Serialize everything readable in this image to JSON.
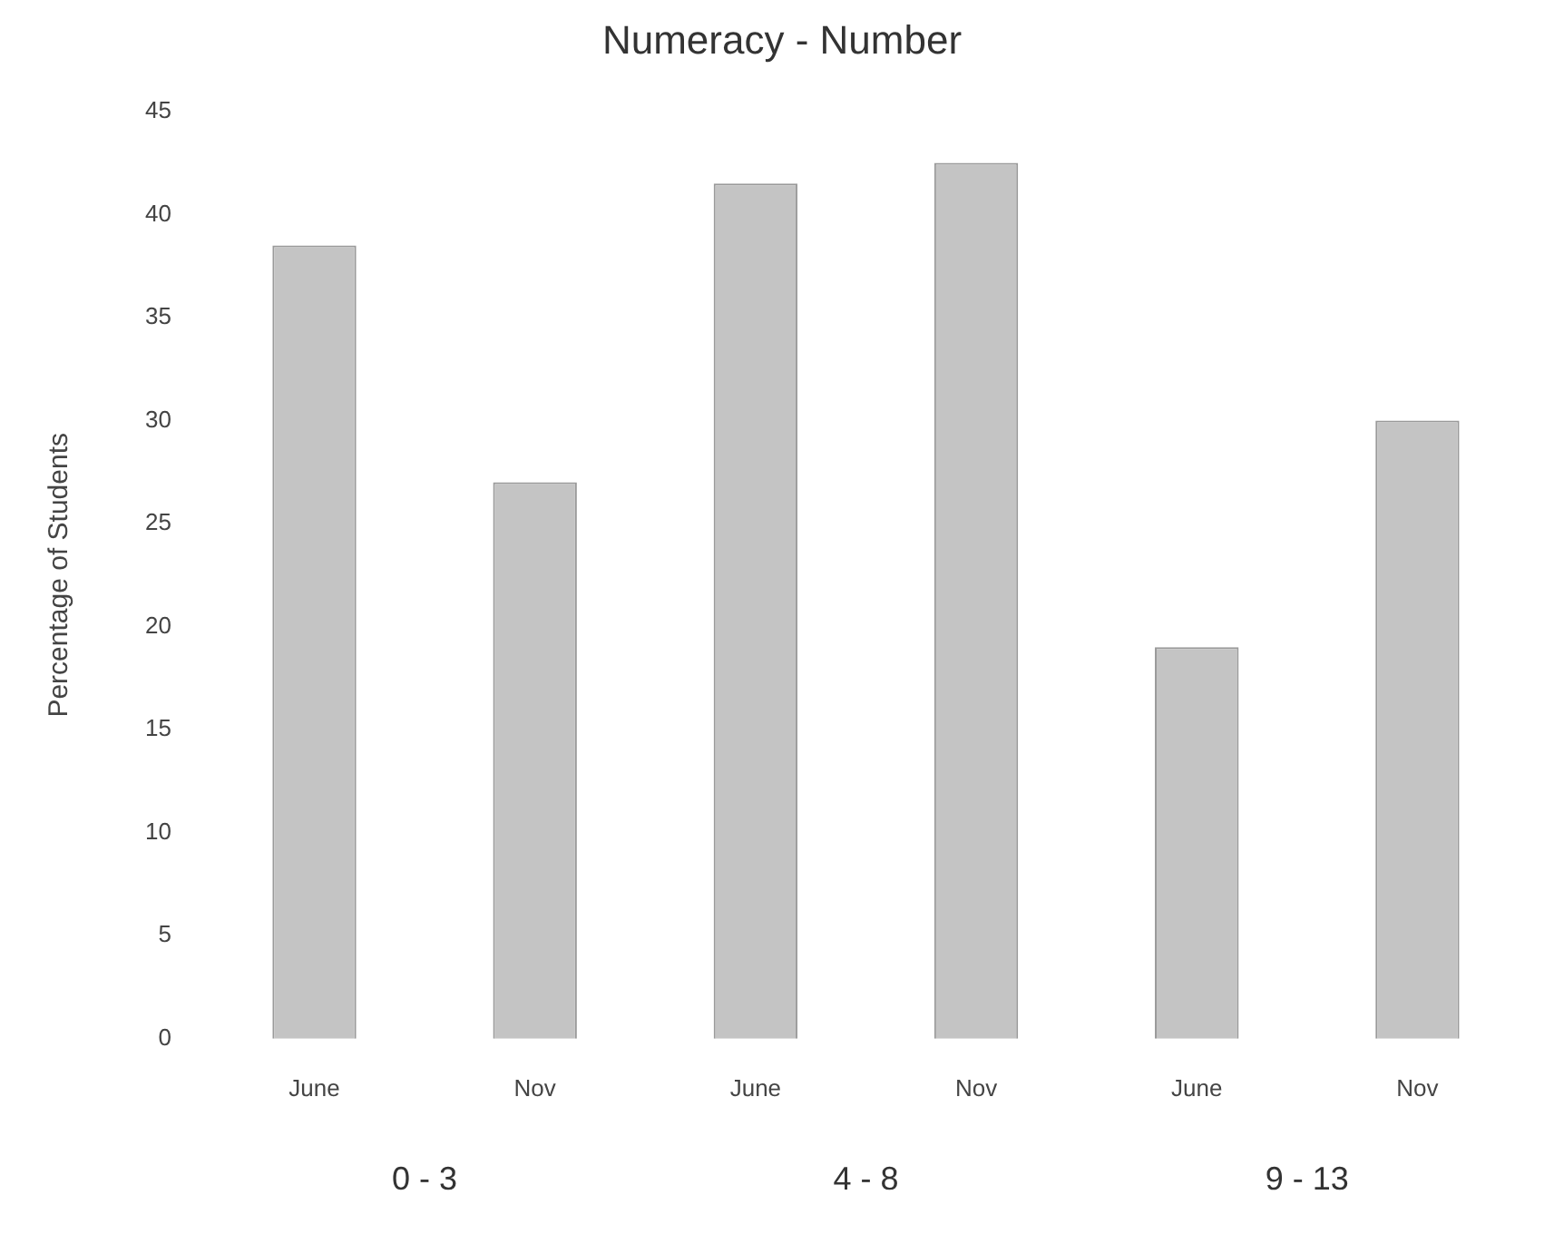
{
  "chart_data": {
    "type": "bar",
    "title": "Numeracy - Number",
    "ylabel": "Percentage of Students",
    "categories": [
      "June",
      "Nov",
      "June",
      "Nov",
      "June",
      "Nov"
    ],
    "values": [
      38.5,
      27,
      41.5,
      42.5,
      19,
      30
    ],
    "color": "#c4c4c4",
    "ylim": [
      0,
      45
    ],
    "yticks": [
      0,
      5,
      10,
      15,
      20,
      25,
      30,
      35,
      40,
      45
    ],
    "grid": false,
    "legend": false,
    "annotations": [
      "0 - 3",
      "4 - 8",
      "9 - 13"
    ]
  }
}
